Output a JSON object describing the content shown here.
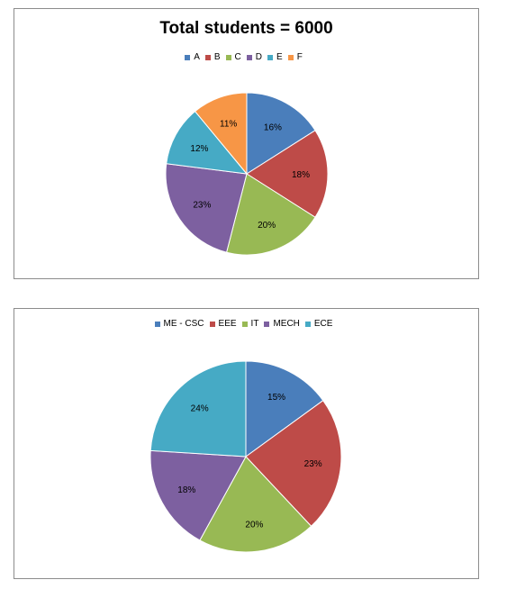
{
  "chart_data": [
    {
      "type": "pie",
      "title": "Total students = 6000",
      "legend_position": "top",
      "categories": [
        "A",
        "B",
        "C",
        "D",
        "E",
        "F"
      ],
      "values": [
        16,
        18,
        20,
        23,
        12,
        11
      ],
      "labels": [
        "16%",
        "18%",
        "20%",
        "23%",
        "12%",
        "11%"
      ],
      "colors": [
        "#4a7ebb",
        "#be4b48",
        "#98b954",
        "#7d60a0",
        "#46aac5",
        "#f79646"
      ]
    },
    {
      "type": "pie",
      "title": "",
      "legend_position": "top",
      "categories": [
        "ME - CSC",
        "EEE",
        "IT",
        "MECH",
        "ECE"
      ],
      "values": [
        15,
        23,
        20,
        18,
        24
      ],
      "labels": [
        "15%",
        "23%",
        "20%",
        "18%",
        "24%"
      ],
      "colors": [
        "#4a7ebb",
        "#be4b48",
        "#98b954",
        "#7d60a0",
        "#46aac5"
      ]
    }
  ]
}
